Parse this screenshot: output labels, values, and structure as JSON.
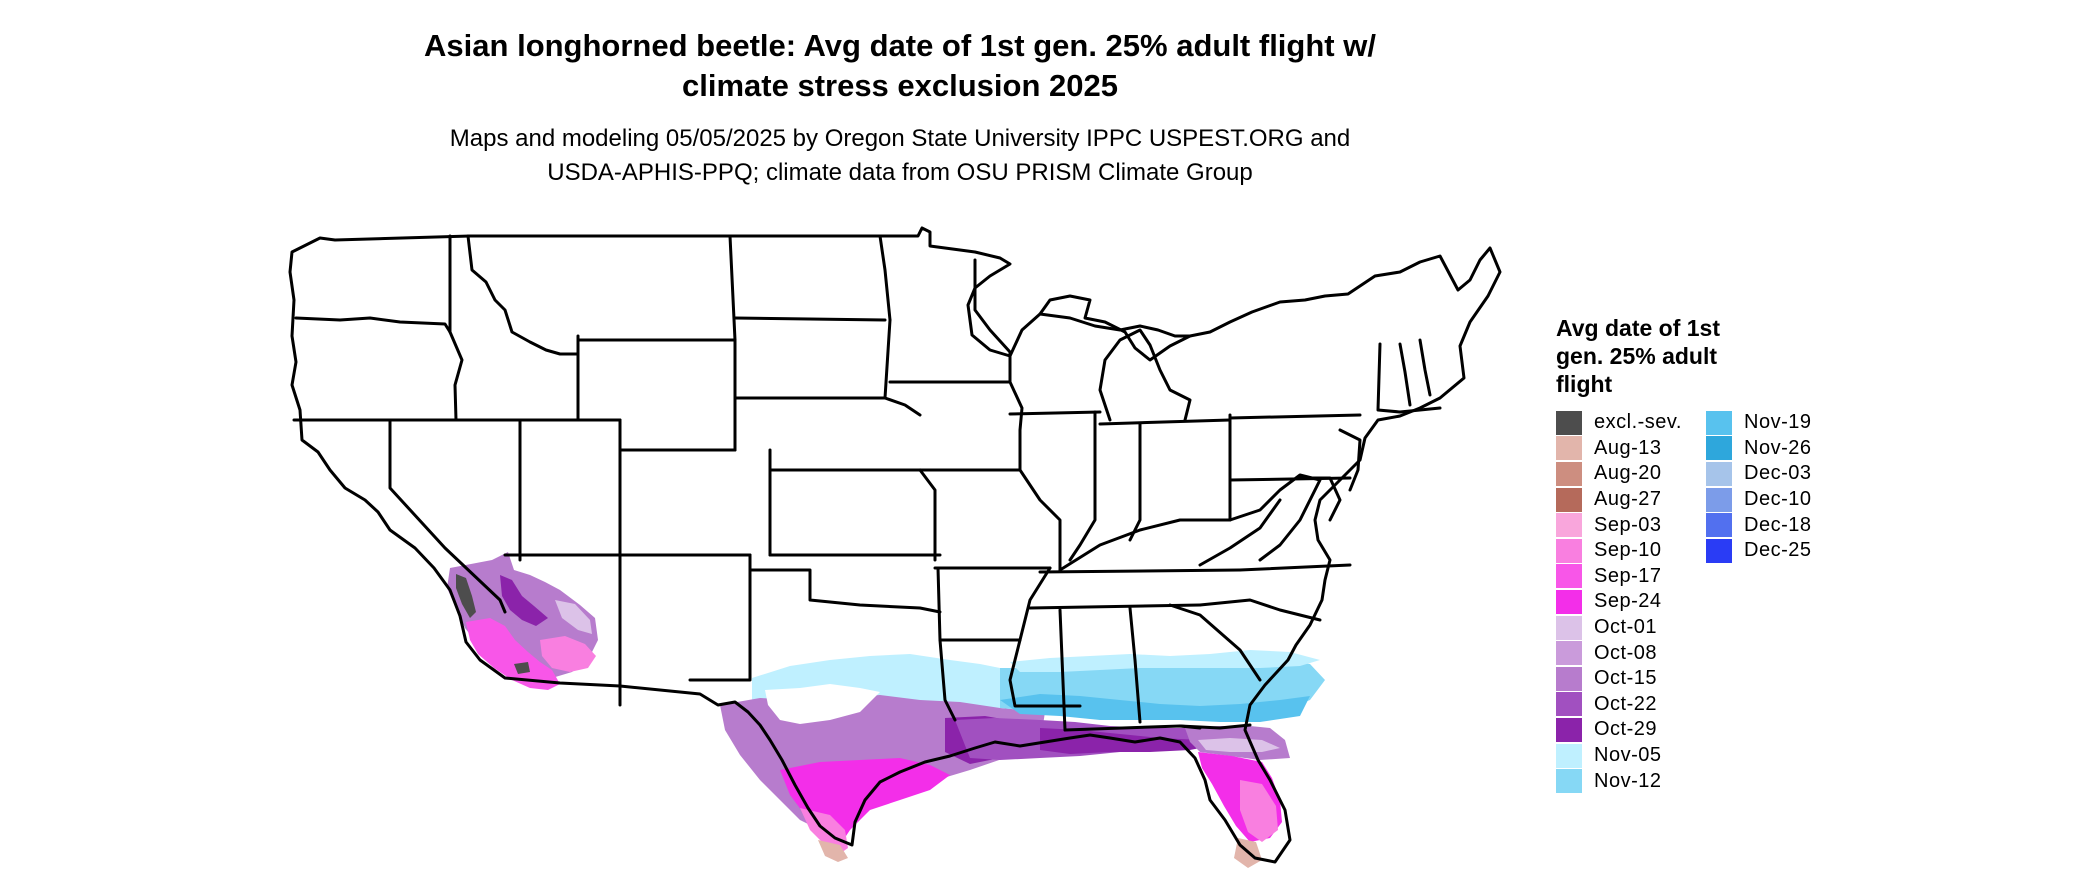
{
  "title": {
    "line1": "Asian longhorned beetle: Avg date of 1st gen. 25% adult flight w/",
    "line2": "climate stress exclusion 2025"
  },
  "subtitle": {
    "line1": "Maps and modeling 05/05/2025 by Oregon State University IPPC USPEST.ORG and",
    "line2": "USDA-APHIS-PPQ; climate data from OSU PRISM Climate Group"
  },
  "legend": {
    "title_line1": "Avg date of 1st",
    "title_line2": "gen. 25% adult",
    "title_line3": "flight",
    "items": [
      {
        "label": "excl.-sev.",
        "color": "#4d4d4d"
      },
      {
        "label": "Aug-13",
        "color": "#e2b5ab"
      },
      {
        "label": "Aug-20",
        "color": "#cd8e80"
      },
      {
        "label": "Aug-27",
        "color": "#b56a5b"
      },
      {
        "label": "Sep-03",
        "color": "#f9a6dc"
      },
      {
        "label": "Sep-10",
        "color": "#f97fe0"
      },
      {
        "label": "Sep-17",
        "color": "#f856e8"
      },
      {
        "label": "Sep-24",
        "color": "#f32ee9"
      },
      {
        "label": "Oct-01",
        "color": "#dcc2e8"
      },
      {
        "label": "Oct-08",
        "color": "#ca9bdb"
      },
      {
        "label": "Oct-15",
        "color": "#b77ccd"
      },
      {
        "label": "Oct-22",
        "color": "#a150c0"
      },
      {
        "label": "Oct-29",
        "color": "#8b23aa"
      },
      {
        "label": "Nov-05",
        "color": "#bff0ff"
      },
      {
        "label": "Nov-12",
        "color": "#86d8f5"
      },
      {
        "label": "Nov-19",
        "color": "#58c2ee"
      },
      {
        "label": "Nov-26",
        "color": "#2ea7dc"
      },
      {
        "label": "Dec-03",
        "color": "#a6c4ea"
      },
      {
        "label": "Dec-10",
        "color": "#7c9ce9"
      },
      {
        "label": "Dec-18",
        "color": "#5270ef"
      },
      {
        "label": "Dec-25",
        "color": "#2a3cf5"
      }
    ]
  }
}
